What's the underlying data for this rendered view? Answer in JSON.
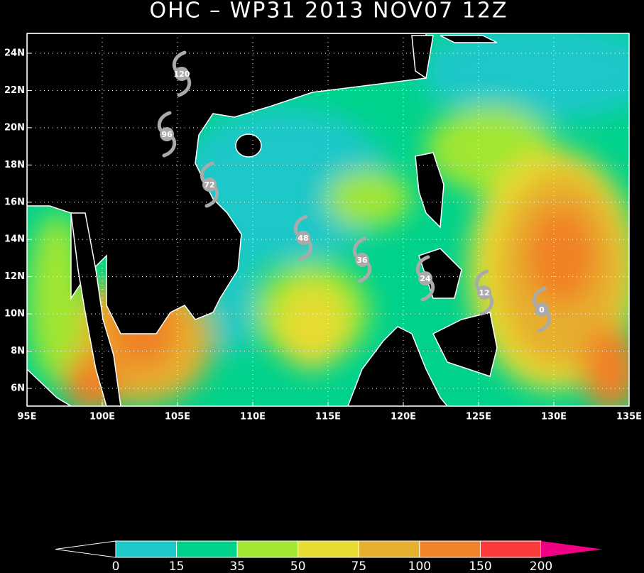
{
  "map": {
    "title": "OHC – WP31 2013 NOV07 12Z",
    "lat_labels": [
      "24N",
      "22N",
      "20N",
      "18N",
      "16N",
      "14N",
      "12N",
      "10N",
      "8N",
      "6N"
    ],
    "lon_labels": [
      "95E",
      "100E",
      "105E",
      "110E",
      "115E",
      "120E",
      "125E",
      "130E",
      "135E"
    ],
    "track": [
      120,
      96,
      72,
      48,
      36,
      24,
      12,
      0
    ],
    "track_color": "#aaaaaa",
    "colorbar": {
      "ticks": [
        0,
        15,
        35,
        50,
        75,
        100,
        150,
        200
      ],
      "colors": [
        "#1ec8c8",
        "#00d28c",
        "#a0e632",
        "#e6dc32",
        "#e6af2d",
        "#f08228",
        "#fa3c3c"
      ],
      "over_color": "#f00082"
    }
  }
}
